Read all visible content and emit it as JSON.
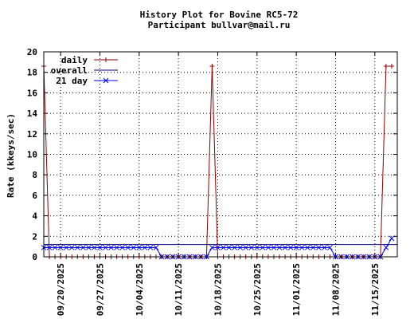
{
  "chart_data": {
    "type": "line",
    "title": "History Plot for Bovine RC5-72",
    "subtitle": "Participant bullvar@mail.ru",
    "ylabel": "Rate (kkeys/sec)",
    "xlabel": "",
    "ylim": [
      0,
      20
    ],
    "yticks": [
      "0",
      "2",
      "4",
      "6",
      "8",
      "10",
      "12",
      "14",
      "16",
      "18",
      "20"
    ],
    "xlim": [
      "2025-09-17",
      "2025-11-19"
    ],
    "xticks": [
      "09/20/2025",
      "09/27/2025",
      "10/04/2025",
      "10/11/2025",
      "10/18/2025",
      "10/25/2025",
      "11/01/2025",
      "11/08/2025",
      "11/15/2025"
    ],
    "grid": true,
    "legend_position": "top-left",
    "series": [
      {
        "name": "daily",
        "color": "#8b0000",
        "marker": "plus",
        "points": [
          [
            "2025-09-17",
            18.6
          ],
          [
            "2025-09-18",
            0
          ],
          [
            "2025-09-19",
            0
          ],
          [
            "2025-09-20",
            0
          ],
          [
            "2025-09-21",
            0
          ],
          [
            "2025-09-22",
            0
          ],
          [
            "2025-09-23",
            0
          ],
          [
            "2025-09-24",
            0
          ],
          [
            "2025-09-25",
            0
          ],
          [
            "2025-09-26",
            0
          ],
          [
            "2025-09-27",
            0
          ],
          [
            "2025-09-28",
            0
          ],
          [
            "2025-09-29",
            0
          ],
          [
            "2025-09-30",
            0
          ],
          [
            "2025-10-01",
            0
          ],
          [
            "2025-10-02",
            0
          ],
          [
            "2025-10-03",
            0
          ],
          [
            "2025-10-04",
            0
          ],
          [
            "2025-10-05",
            0
          ],
          [
            "2025-10-06",
            0
          ],
          [
            "2025-10-07",
            0
          ],
          [
            "2025-10-08",
            0
          ],
          [
            "2025-10-09",
            0
          ],
          [
            "2025-10-10",
            0
          ],
          [
            "2025-10-11",
            0
          ],
          [
            "2025-10-12",
            0
          ],
          [
            "2025-10-13",
            0
          ],
          [
            "2025-10-14",
            0
          ],
          [
            "2025-10-15",
            0
          ],
          [
            "2025-10-16",
            0
          ],
          [
            "2025-10-17",
            18.6
          ],
          [
            "2025-10-18",
            0
          ],
          [
            "2025-10-19",
            0
          ],
          [
            "2025-10-20",
            0
          ],
          [
            "2025-10-21",
            0
          ],
          [
            "2025-10-22",
            0
          ],
          [
            "2025-10-23",
            0
          ],
          [
            "2025-10-24",
            0
          ],
          [
            "2025-10-25",
            0
          ],
          [
            "2025-10-26",
            0
          ],
          [
            "2025-10-27",
            0
          ],
          [
            "2025-10-28",
            0
          ],
          [
            "2025-10-29",
            0
          ],
          [
            "2025-10-30",
            0
          ],
          [
            "2025-10-31",
            0
          ],
          [
            "2025-11-01",
            0
          ],
          [
            "2025-11-02",
            0
          ],
          [
            "2025-11-03",
            0
          ],
          [
            "2025-11-04",
            0
          ],
          [
            "2025-11-05",
            0
          ],
          [
            "2025-11-06",
            0
          ],
          [
            "2025-11-07",
            0
          ],
          [
            "2025-11-08",
            0
          ],
          [
            "2025-11-09",
            0
          ],
          [
            "2025-11-10",
            0
          ],
          [
            "2025-11-11",
            0
          ],
          [
            "2025-11-12",
            0
          ],
          [
            "2025-11-13",
            0
          ],
          [
            "2025-11-14",
            0
          ],
          [
            "2025-11-15",
            0
          ],
          [
            "2025-11-16",
            0
          ],
          [
            "2025-11-17",
            18.6
          ],
          [
            "2025-11-18",
            18.6
          ]
        ]
      },
      {
        "name": "overall",
        "color": "#000080",
        "marker": "none",
        "points": [
          [
            "2025-09-17",
            1.2
          ],
          [
            "2025-11-19",
            1.2
          ]
        ]
      },
      {
        "name": "21 day",
        "color": "#0000ff",
        "marker": "x",
        "points": [
          [
            "2025-09-17",
            0.9
          ],
          [
            "2025-09-18",
            0.9
          ],
          [
            "2025-09-19",
            0.9
          ],
          [
            "2025-09-20",
            0.9
          ],
          [
            "2025-09-21",
            0.9
          ],
          [
            "2025-09-22",
            0.9
          ],
          [
            "2025-09-23",
            0.9
          ],
          [
            "2025-09-24",
            0.9
          ],
          [
            "2025-09-25",
            0.9
          ],
          [
            "2025-09-26",
            0.9
          ],
          [
            "2025-09-27",
            0.9
          ],
          [
            "2025-09-28",
            0.9
          ],
          [
            "2025-09-29",
            0.9
          ],
          [
            "2025-09-30",
            0.9
          ],
          [
            "2025-10-01",
            0.9
          ],
          [
            "2025-10-02",
            0.9
          ],
          [
            "2025-10-03",
            0.9
          ],
          [
            "2025-10-04",
            0.9
          ],
          [
            "2025-10-05",
            0.9
          ],
          [
            "2025-10-06",
            0.9
          ],
          [
            "2025-10-07",
            0.9
          ],
          [
            "2025-10-08",
            0
          ],
          [
            "2025-10-09",
            0
          ],
          [
            "2025-10-10",
            0
          ],
          [
            "2025-10-11",
            0
          ],
          [
            "2025-10-12",
            0
          ],
          [
            "2025-10-13",
            0
          ],
          [
            "2025-10-14",
            0
          ],
          [
            "2025-10-15",
            0
          ],
          [
            "2025-10-16",
            0
          ],
          [
            "2025-10-17",
            0.9
          ],
          [
            "2025-10-18",
            0.9
          ],
          [
            "2025-10-19",
            0.9
          ],
          [
            "2025-10-20",
            0.9
          ],
          [
            "2025-10-21",
            0.9
          ],
          [
            "2025-10-22",
            0.9
          ],
          [
            "2025-10-23",
            0.9
          ],
          [
            "2025-10-24",
            0.9
          ],
          [
            "2025-10-25",
            0.9
          ],
          [
            "2025-10-26",
            0.9
          ],
          [
            "2025-10-27",
            0.9
          ],
          [
            "2025-10-28",
            0.9
          ],
          [
            "2025-10-29",
            0.9
          ],
          [
            "2025-10-30",
            0.9
          ],
          [
            "2025-10-31",
            0.9
          ],
          [
            "2025-11-01",
            0.9
          ],
          [
            "2025-11-02",
            0.9
          ],
          [
            "2025-11-03",
            0.9
          ],
          [
            "2025-11-04",
            0.9
          ],
          [
            "2025-11-05",
            0.9
          ],
          [
            "2025-11-06",
            0.9
          ],
          [
            "2025-11-07",
            0.9
          ],
          [
            "2025-11-08",
            0
          ],
          [
            "2025-11-09",
            0
          ],
          [
            "2025-11-10",
            0
          ],
          [
            "2025-11-11",
            0
          ],
          [
            "2025-11-12",
            0
          ],
          [
            "2025-11-13",
            0
          ],
          [
            "2025-11-14",
            0
          ],
          [
            "2025-11-15",
            0
          ],
          [
            "2025-11-16",
            0
          ],
          [
            "2025-11-17",
            0.9
          ],
          [
            "2025-11-18",
            1.8
          ]
        ]
      }
    ]
  }
}
